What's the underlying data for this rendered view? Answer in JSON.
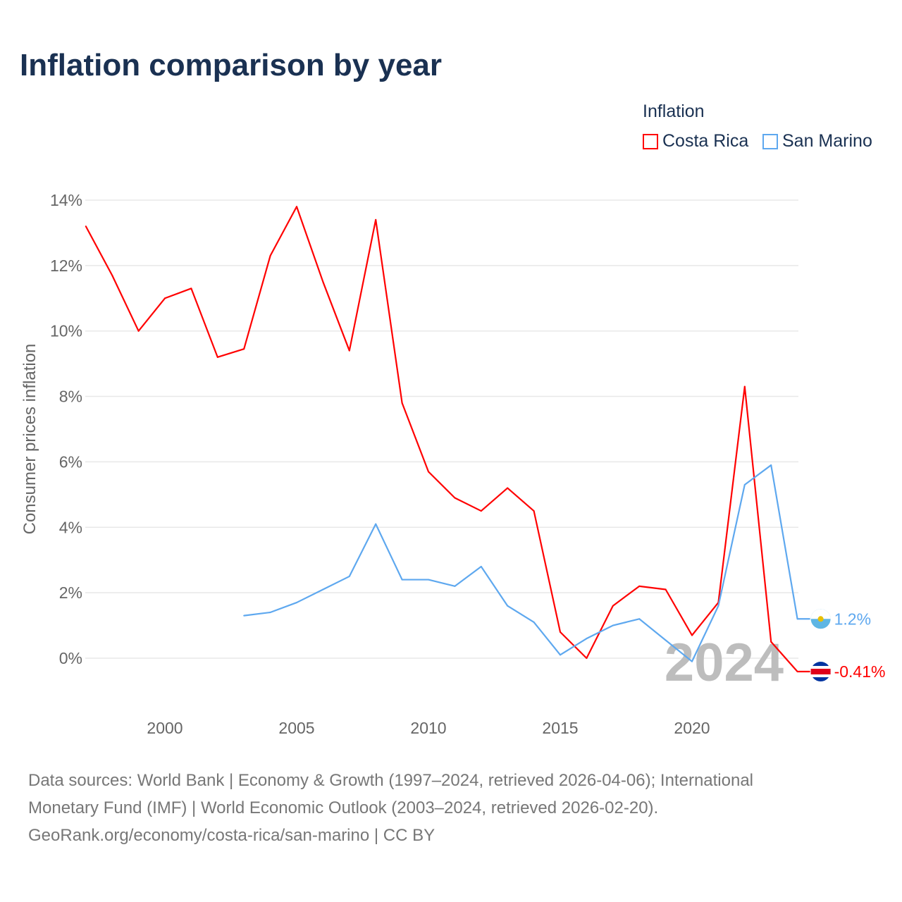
{
  "title": "Inflation comparison by year",
  "legend": {
    "title": "Inflation",
    "entries": [
      "Costa Rica",
      "San Marino"
    ]
  },
  "footer": {
    "line1": "Data sources: World Bank | Economy & Growth (1997–2024, retrieved 2026-04-06); International",
    "line2": "Monetary Fund (IMF) | World Economic Outlook (2003–2024, retrieved 2026-02-20).",
    "line3": "GeoRank.org/economy/costa-rica/san-marino | CC BY"
  },
  "chart_data": {
    "type": "line",
    "title": "Inflation comparison by year",
    "ylabel": "Consumer prices inflation",
    "xlabel": "",
    "ylim": [
      -1.2,
      14.3
    ],
    "xlim": [
      1997,
      2024
    ],
    "yticks": [
      0,
      2,
      4,
      6,
      8,
      10,
      12,
      14
    ],
    "ytick_labels": [
      "0%",
      "2%",
      "4%",
      "6%",
      "8%",
      "10%",
      "12%",
      "14%"
    ],
    "xticks": [
      2000,
      2005,
      2010,
      2015,
      2020
    ],
    "xtick_labels": [
      "2000",
      "2005",
      "2010",
      "2015",
      "2020"
    ],
    "grid": true,
    "legend_position": "top-right",
    "year_watermark": "2024",
    "series": [
      {
        "name": "Costa Rica",
        "color": "#ff0000",
        "end_label": "-0.41%",
        "x": [
          1997,
          1998,
          1999,
          2000,
          2001,
          2002,
          2003,
          2004,
          2005,
          2006,
          2007,
          2008,
          2009,
          2010,
          2011,
          2012,
          2013,
          2014,
          2015,
          2016,
          2017,
          2018,
          2019,
          2020,
          2021,
          2022,
          2023,
          2024
        ],
        "values": [
          13.2,
          11.7,
          10.0,
          11.0,
          11.3,
          9.2,
          9.45,
          12.3,
          13.8,
          11.5,
          9.4,
          13.4,
          7.8,
          5.7,
          4.9,
          4.5,
          5.2,
          4.5,
          0.8,
          0.0,
          1.6,
          2.2,
          2.1,
          0.7,
          1.7,
          8.3,
          0.5,
          -0.41
        ]
      },
      {
        "name": "San Marino",
        "color": "#5ea8ef",
        "end_label": "1.2%",
        "x": [
          2003,
          2004,
          2005,
          2006,
          2007,
          2008,
          2009,
          2010,
          2011,
          2012,
          2013,
          2014,
          2015,
          2016,
          2017,
          2018,
          2019,
          2020,
          2021,
          2022,
          2023,
          2024
        ],
        "values": [
          1.3,
          1.4,
          1.7,
          2.1,
          2.5,
          4.1,
          2.4,
          2.4,
          2.2,
          2.8,
          1.6,
          1.1,
          0.1,
          0.6,
          1.0,
          1.2,
          0.55,
          -0.1,
          1.6,
          5.3,
          5.9,
          1.2
        ]
      }
    ]
  }
}
